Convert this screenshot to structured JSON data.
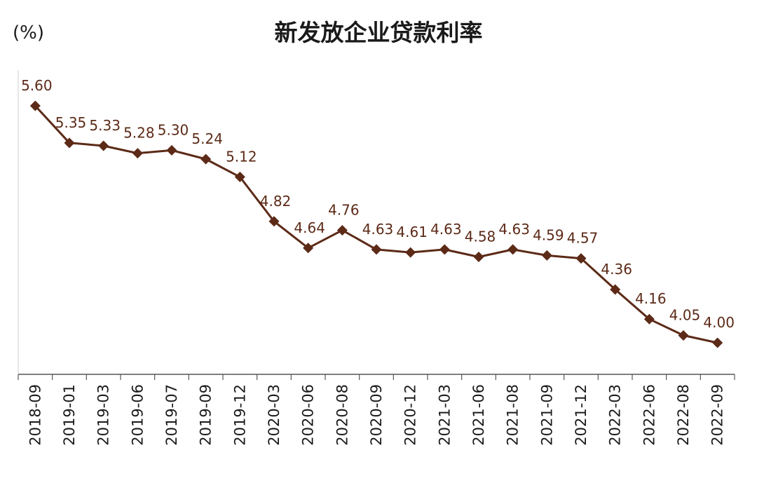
{
  "chart_data": {
    "type": "line",
    "title": "新发放企业贷款利率",
    "y_unit": "(%)",
    "xlabel": "",
    "ylabel": "",
    "categories": [
      "2018-09",
      "2019-01",
      "2019-03",
      "2019-06",
      "2019-07",
      "2019-09",
      "2019-12",
      "2020-03",
      "2020-06",
      "2020-08",
      "2020-09",
      "2020-12",
      "2021-03",
      "2021-06",
      "2021-08",
      "2021-09",
      "2021-12",
      "2022-03",
      "2022-06",
      "2022-08",
      "2022-09"
    ],
    "series": [
      {
        "values": [
          5.6,
          5.35,
          5.33,
          5.28,
          5.3,
          5.24,
          5.12,
          4.82,
          4.64,
          4.76,
          4.63,
          4.61,
          4.63,
          4.58,
          4.63,
          4.59,
          4.57,
          4.36,
          4.16,
          4.05,
          4.0
        ],
        "labels": [
          "5.60",
          "5.35",
          "5.33",
          "5.28",
          "5.30",
          "5.24",
          "5.12",
          "4.82",
          "4.64",
          "4.76",
          "4.63",
          "4.61",
          "4.63",
          "4.58",
          "4.63",
          "4.59",
          "4.57",
          "4.36",
          "4.16",
          "4.05",
          "4.00"
        ],
        "color": "#5c2a17"
      }
    ],
    "ylim": [
      3.8,
      5.8
    ],
    "grid": false,
    "legend": "none"
  }
}
